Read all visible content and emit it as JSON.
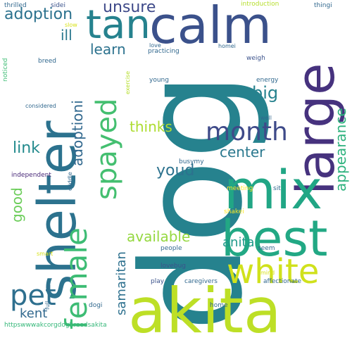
{
  "words": [
    {
      "text": "dog",
      "color": "#26828e",
      "vertical": true
    },
    {
      "text": "akita",
      "color": "#bddf26",
      "vertical": false
    },
    {
      "text": "shelter",
      "color": "#2c728e",
      "vertical": true
    },
    {
      "text": "calm",
      "color": "#3b518b",
      "vertical": false
    },
    {
      "text": "large",
      "color": "#46327e",
      "vertical": true
    },
    {
      "text": "mix",
      "color": "#21a685",
      "vertical": false
    },
    {
      "text": "best",
      "color": "#22a884",
      "vertical": false
    },
    {
      "text": "tan",
      "color": "#26828e",
      "vertical": false
    },
    {
      "text": "white",
      "color": "#d0e11c",
      "vertical": false
    },
    {
      "text": "female",
      "color": "#3dbc74",
      "vertical": true
    },
    {
      "text": "spayed",
      "color": "#44bf70",
      "vertical": true
    },
    {
      "text": "pet",
      "color": "#2e6f8e",
      "vertical": false
    },
    {
      "text": "month",
      "color": "#3e4a89",
      "vertical": false
    },
    {
      "text": "adoption",
      "color": "#2c728e",
      "vertical": false
    },
    {
      "text": "unsure",
      "color": "#3e4989",
      "vertical": false
    },
    {
      "text": "learn",
      "color": "#2c728e",
      "vertical": false
    },
    {
      "text": "ill",
      "color": "#2a788e",
      "vertical": false
    },
    {
      "text": "adoptioni",
      "color": "#31688e",
      "vertical": true
    },
    {
      "text": "big",
      "color": "#26828e",
      "vertical": false
    },
    {
      "text": "thinks",
      "color": "#addc30",
      "vertical": false
    },
    {
      "text": "link",
      "color": "#238a8d",
      "vertical": false
    },
    {
      "text": "center",
      "color": "#2a788e",
      "vertical": false
    },
    {
      "text": "youd",
      "color": "#2c728e",
      "vertical": false
    },
    {
      "text": "appearance",
      "color": "#2db27d",
      "vertical": true
    },
    {
      "text": "good",
      "color": "#6ccd5a",
      "vertical": true
    },
    {
      "text": "available",
      "color": "#95d840",
      "vertical": false
    },
    {
      "text": "anita",
      "color": "#1f9a8a",
      "vertical": false
    },
    {
      "text": "samaritan",
      "color": "#2d708e",
      "vertical": true
    },
    {
      "text": "kent",
      "color": "#31688e",
      "vertical": false
    },
    {
      "text": "introduction",
      "color": "#b5de2b",
      "vertical": false
    },
    {
      "text": "thingi",
      "color": "#31688e",
      "vertical": false
    },
    {
      "text": "thrilled",
      "color": "#31688e",
      "vertical": false
    },
    {
      "text": "sidei",
      "color": "#3b528b",
      "vertical": false
    },
    {
      "text": "slow",
      "color": "#d8e219",
      "vertical": false
    },
    {
      "text": "breed",
      "color": "#31688e",
      "vertical": false
    },
    {
      "text": "noticed",
      "color": "#3dbc74",
      "vertical": true
    },
    {
      "text": "love",
      "color": "#31688e",
      "vertical": false
    },
    {
      "text": "practicing",
      "color": "#31688e",
      "vertical": false
    },
    {
      "text": "homei",
      "color": "#31688e",
      "vertical": false
    },
    {
      "text": "weigh",
      "color": "#3b528b",
      "vertical": false
    },
    {
      "text": "exercise",
      "color": "#b5de2b",
      "vertical": true
    },
    {
      "text": "young",
      "color": "#31688e",
      "vertical": false
    },
    {
      "text": "energy",
      "color": "#31688e",
      "vertical": false
    },
    {
      "text": "considered",
      "color": "#31688e",
      "vertical": false
    },
    {
      "text": "well",
      "color": "#31688e",
      "vertical": false
    },
    {
      "text": "busymy",
      "color": "#31688e",
      "vertical": false
    },
    {
      "text": "independent",
      "color": "#482878",
      "vertical": false
    },
    {
      "text": "cuddle",
      "color": "#31688e",
      "vertical": true
    },
    {
      "text": "meeting",
      "color": "#fde725",
      "vertical": false
    },
    {
      "text": "sit",
      "color": "#31688e",
      "vertical": false
    },
    {
      "text": "shakei",
      "color": "#fde725",
      "vertical": false
    },
    {
      "text": "smart",
      "color": "#d8e219",
      "vertical": false
    },
    {
      "text": "people",
      "color": "#31688e",
      "vertical": false
    },
    {
      "text": "seem",
      "color": "#31688e",
      "vertical": false
    },
    {
      "text": "lovebug",
      "color": "#3b528b",
      "vertical": false
    },
    {
      "text": "mind",
      "color": "#d8e219",
      "vertical": false
    },
    {
      "text": "play",
      "color": "#3b528b",
      "vertical": false
    },
    {
      "text": "caregivers",
      "color": "#31688e",
      "vertical": false
    },
    {
      "text": "affectionate",
      "color": "#31688e",
      "vertical": false
    },
    {
      "text": "full",
      "color": "#31688e",
      "vertical": true
    },
    {
      "text": "dogi",
      "color": "#31688e",
      "vertical": false
    },
    {
      "text": "home",
      "color": "#31688e",
      "vertical": false
    },
    {
      "text": "httpswwwakcorgdogbreedsakita",
      "color": "#35b779",
      "vertical": false
    }
  ]
}
